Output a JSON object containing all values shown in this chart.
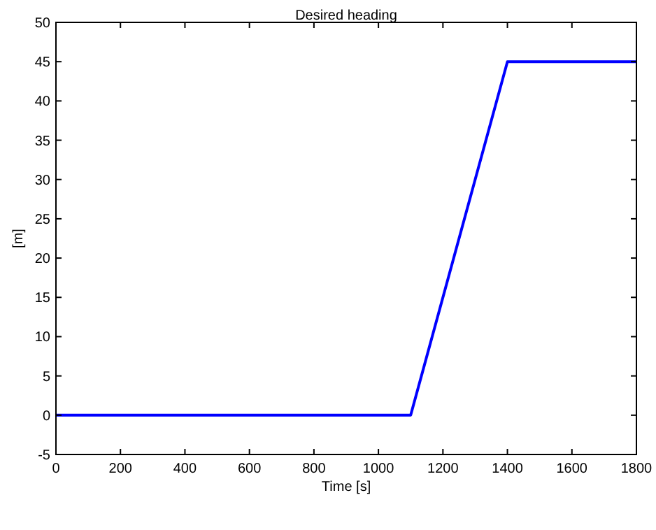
{
  "chart_data": {
    "type": "line",
    "title": "Desired heading",
    "xlabel": "Time [s]",
    "ylabel": "[m]",
    "x": [
      0,
      1100,
      1400,
      1800
    ],
    "series": [
      {
        "color": "#0000ff",
        "values": [
          0,
          0,
          45,
          45
        ]
      }
    ],
    "xlim": [
      0,
      1800
    ],
    "xticks": [
      0,
      200,
      400,
      600,
      800,
      1000,
      1200,
      1400,
      1600,
      1800
    ],
    "ylim": [
      -5,
      50
    ],
    "yticks": [
      -5,
      0,
      5,
      10,
      15,
      20,
      25,
      30,
      35,
      40,
      45,
      50
    ],
    "grid": false,
    "marker": "none",
    "line_style": "solid"
  }
}
